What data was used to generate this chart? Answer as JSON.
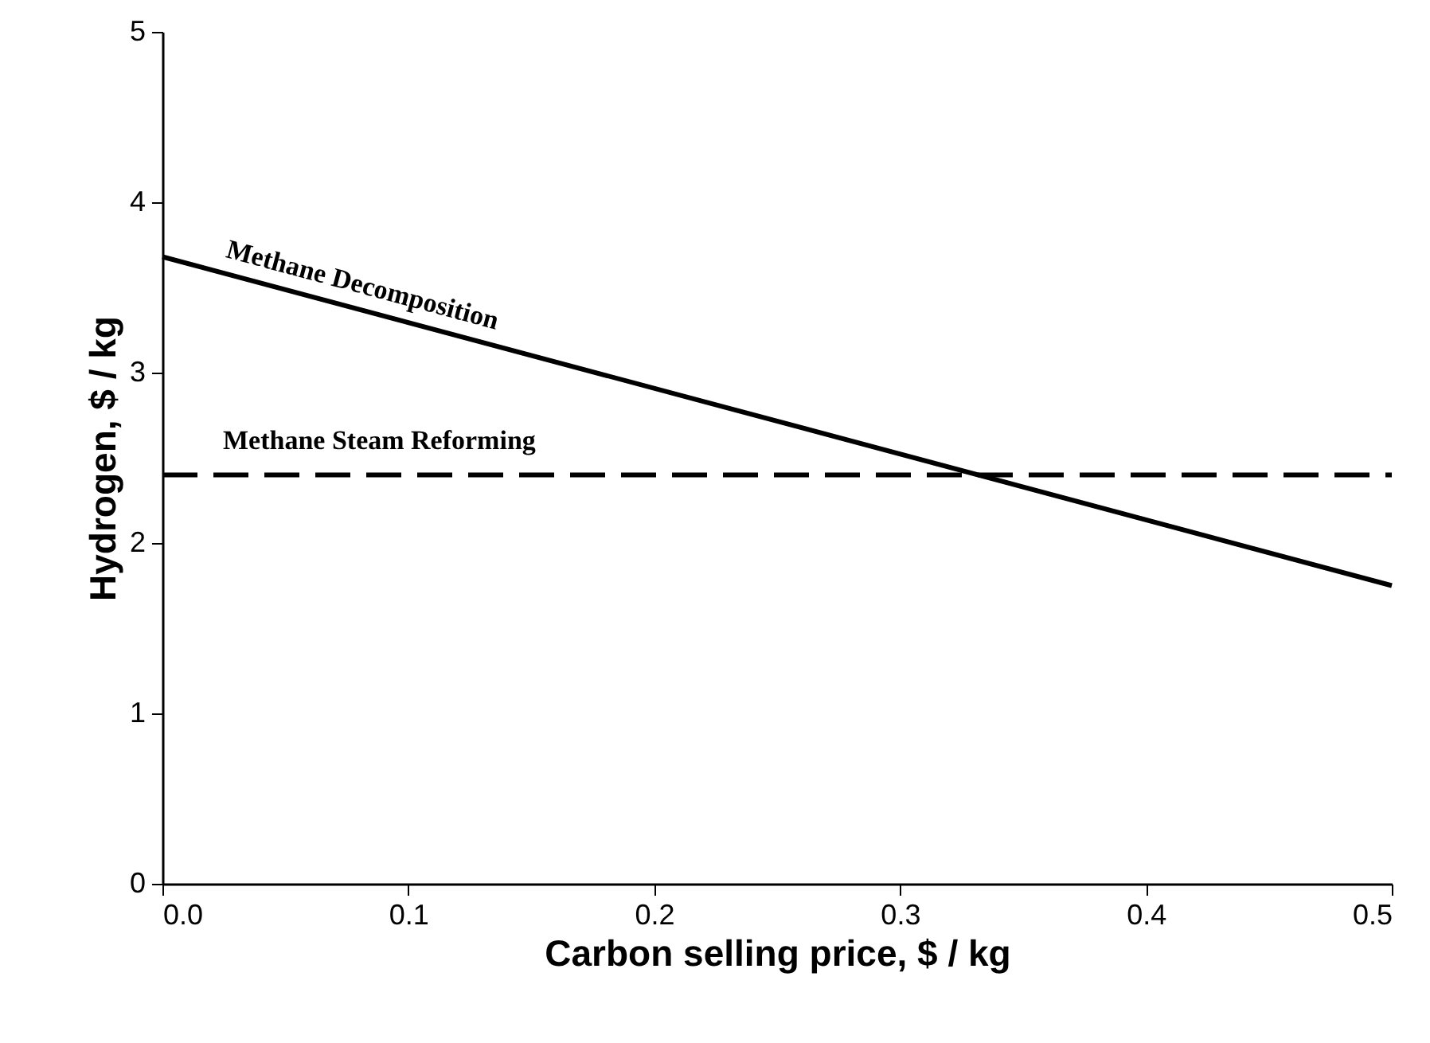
{
  "chart_data": {
    "type": "line",
    "xlabel": "Carbon selling price, $ / kg",
    "ylabel": "Hydrogen, $ / kg",
    "xlim": [
      0,
      0.5
    ],
    "ylim": [
      0,
      5
    ],
    "xticks": [
      {
        "value": 0,
        "label": "0.0"
      },
      0.1,
      0.2,
      0.3,
      0.4,
      0.5
    ],
    "yticks": [
      0,
      1,
      2,
      3,
      4,
      5
    ],
    "x": [
      0,
      0.5
    ],
    "series": [
      {
        "name": "Methane Decomposition",
        "color": "#000000",
        "line_style": "solid",
        "values": [
          3.68,
          1.75
        ]
      },
      {
        "name": "Methane Steam Reforming",
        "color": "#000000",
        "line_style": "dashed",
        "values": [
          2.4,
          2.4
        ]
      }
    ]
  }
}
